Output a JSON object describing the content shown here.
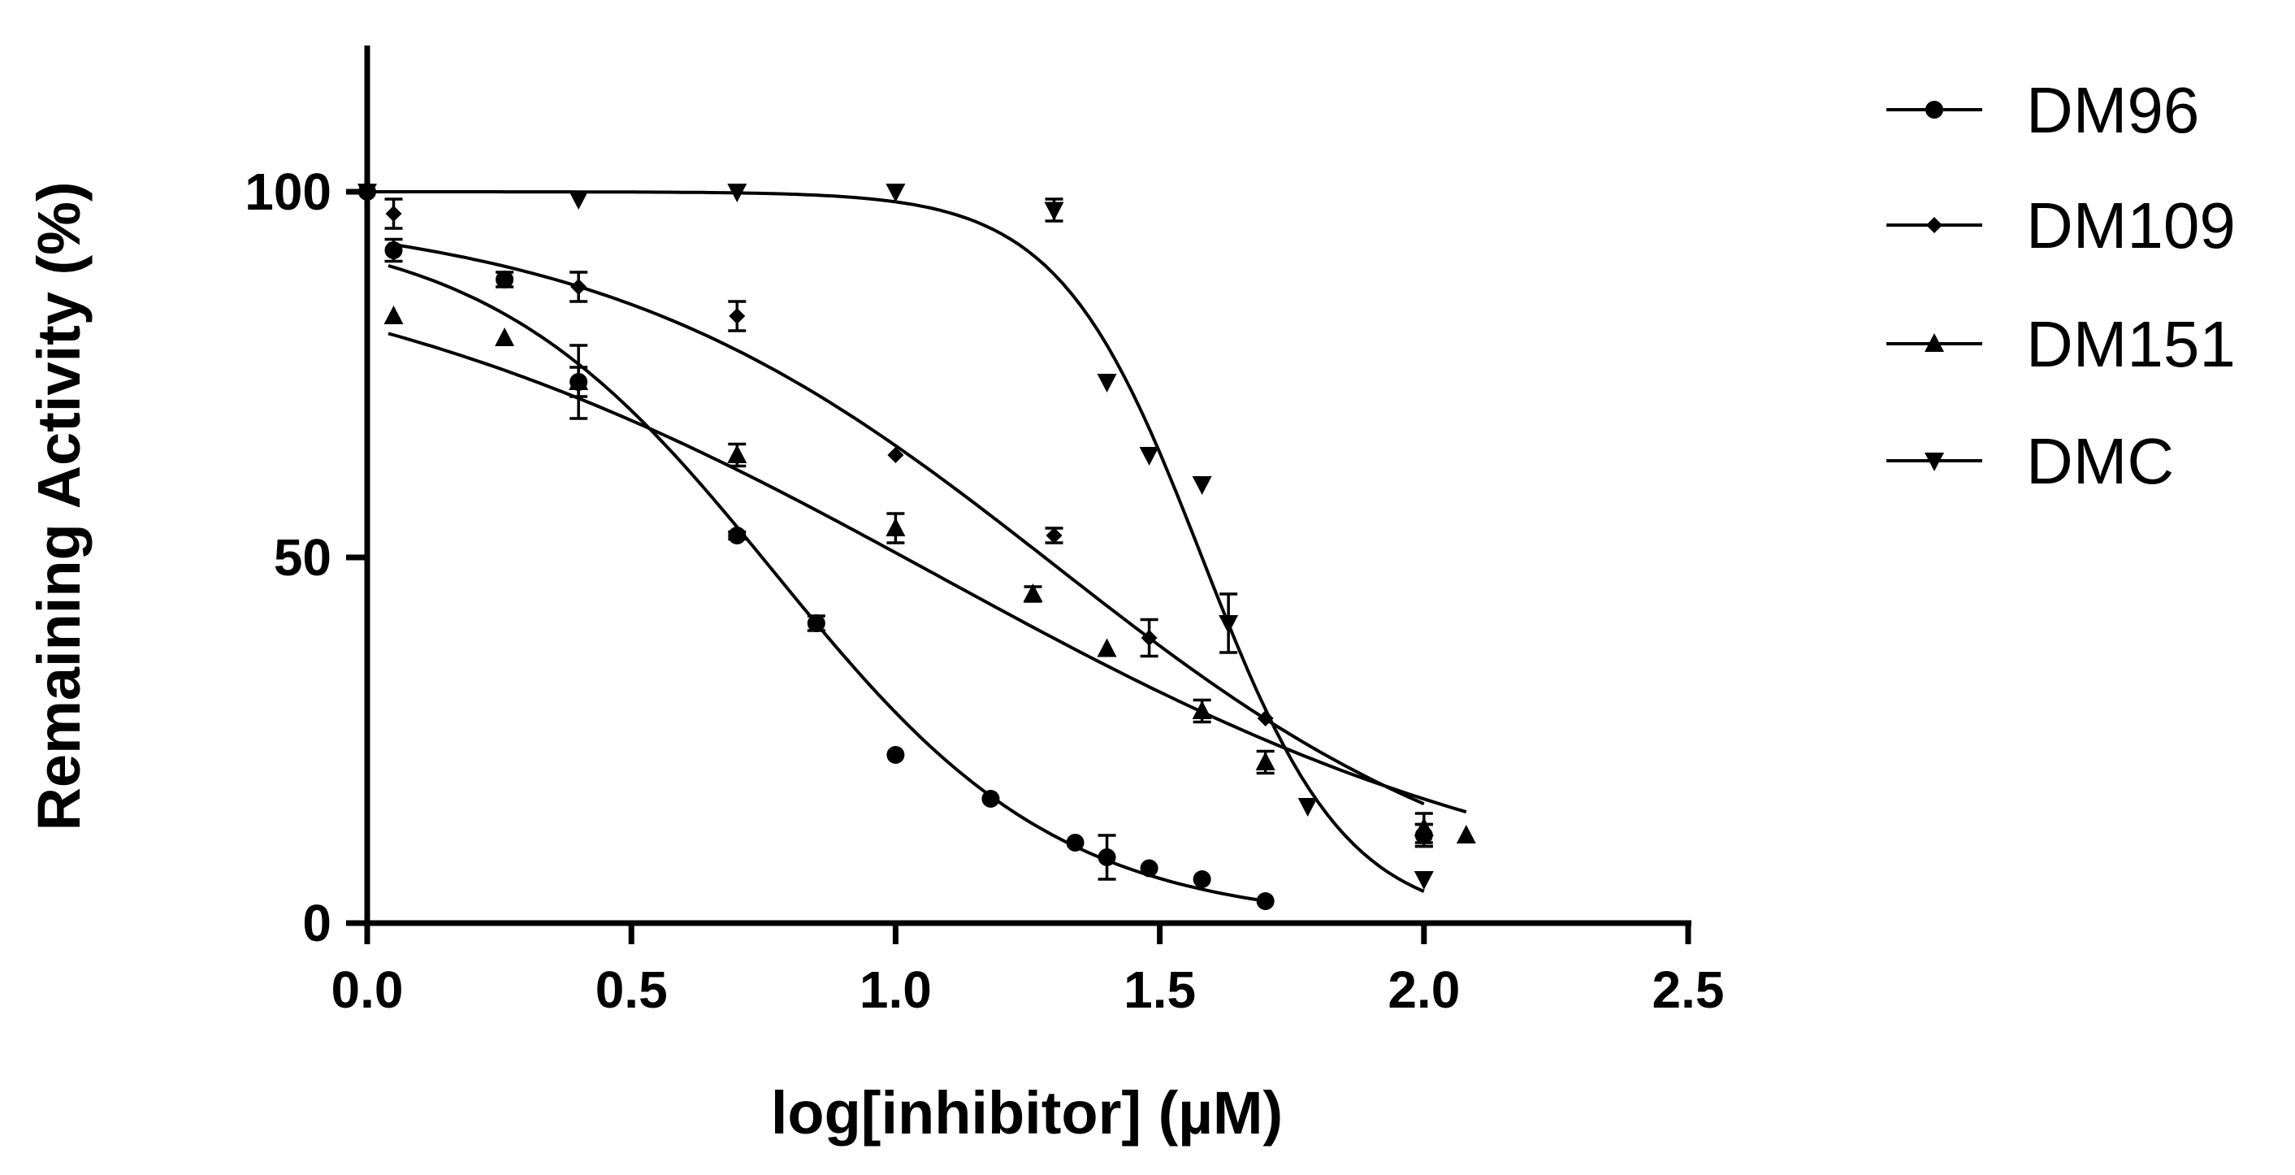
{
  "chart_data": {
    "type": "scatter",
    "title": "",
    "xlabel": "log[inhibitor] (µM)",
    "ylabel": "Remaining Activity (%)",
    "xlim": [
      0,
      2.5
    ],
    "ylim": [
      0,
      120
    ],
    "xticks": [
      "0.0",
      "0.5",
      "1.0",
      "1.5",
      "2.0",
      "2.5"
    ],
    "yticks": [
      "0",
      "50",
      "100"
    ],
    "legend_position": "right",
    "grid": false,
    "series": [
      {
        "name": "DM96",
        "marker": "circle",
        "points": [
          {
            "x": 0.0,
            "y": 100,
            "err": 0
          },
          {
            "x": 0.05,
            "y": 92,
            "err": 1.5
          },
          {
            "x": 0.26,
            "y": 88,
            "err": 1
          },
          {
            "x": 0.4,
            "y": 74,
            "err": 2
          },
          {
            "x": 0.7,
            "y": 53,
            "err": 0.5
          },
          {
            "x": 0.85,
            "y": 41,
            "err": 1
          },
          {
            "x": 1.0,
            "y": 23,
            "err": 0
          },
          {
            "x": 1.18,
            "y": 17,
            "err": 0
          },
          {
            "x": 1.34,
            "y": 11,
            "err": 0
          },
          {
            "x": 1.4,
            "y": 9,
            "err": 3
          },
          {
            "x": 1.48,
            "y": 7.5,
            "err": 0
          },
          {
            "x": 1.58,
            "y": 6,
            "err": 0
          },
          {
            "x": 1.7,
            "y": 3,
            "err": 0
          },
          {
            "x": 2.0,
            "y": 12,
            "err": 1.5
          }
        ],
        "fit": {
          "bottom": 0,
          "top": 96,
          "logic50": 0.77,
          "hill": -1.6,
          "xrange": [
            0.04,
            1.7
          ]
        }
      },
      {
        "name": "DM109",
        "marker": "diamond",
        "points": [
          {
            "x": 0.0,
            "y": 100,
            "err": 0
          },
          {
            "x": 0.05,
            "y": 97,
            "err": 2
          },
          {
            "x": 0.4,
            "y": 87,
            "err": 2
          },
          {
            "x": 0.7,
            "y": 83,
            "err": 2
          },
          {
            "x": 1.0,
            "y": 64,
            "err": 0
          },
          {
            "x": 1.3,
            "y": 53,
            "err": 1
          },
          {
            "x": 1.48,
            "y": 39,
            "err": 2.5
          },
          {
            "x": 1.7,
            "y": 28,
            "err": 0
          },
          {
            "x": 2.0,
            "y": 12,
            "err": 1.5
          }
        ],
        "fit": {
          "bottom": 0,
          "top": 98,
          "logic50": 1.3,
          "hill": -1.0,
          "xrange": [
            0.04,
            2.0
          ]
        }
      },
      {
        "name": "DM151",
        "marker": "triangle-up",
        "points": [
          {
            "x": 0.05,
            "y": 83,
            "err": 0
          },
          {
            "x": 0.26,
            "y": 80,
            "err": 0
          },
          {
            "x": 0.4,
            "y": 74,
            "err": 5
          },
          {
            "x": 0.7,
            "y": 64,
            "err": 1.5
          },
          {
            "x": 1.0,
            "y": 54,
            "err": 2
          },
          {
            "x": 1.26,
            "y": 45,
            "err": 1
          },
          {
            "x": 1.4,
            "y": 37.5,
            "err": 0
          },
          {
            "x": 1.58,
            "y": 29,
            "err": 1.5
          },
          {
            "x": 1.7,
            "y": 22,
            "err": 1.5
          },
          {
            "x": 2.0,
            "y": 13,
            "err": 2
          },
          {
            "x": 2.08,
            "y": 12,
            "err": 0
          }
        ],
        "fit": {
          "bottom": 0,
          "top": 95,
          "logic50": 1.08,
          "hill": -0.72,
          "xrange": [
            0.04,
            2.08
          ]
        }
      },
      {
        "name": "DMC",
        "marker": "triangle-down",
        "points": [
          {
            "x": 0.0,
            "y": 100,
            "err": 0
          },
          {
            "x": 0.4,
            "y": 99,
            "err": 0
          },
          {
            "x": 0.7,
            "y": 100,
            "err": 0
          },
          {
            "x": 1.0,
            "y": 100,
            "err": 0
          },
          {
            "x": 1.3,
            "y": 97.5,
            "err": 1.5
          },
          {
            "x": 1.4,
            "y": 74,
            "err": 0
          },
          {
            "x": 1.48,
            "y": 64,
            "err": 0
          },
          {
            "x": 1.58,
            "y": 60,
            "err": 0
          },
          {
            "x": 1.63,
            "y": 41,
            "err": 4
          },
          {
            "x": 1.78,
            "y": 16,
            "err": 0
          },
          {
            "x": 2.0,
            "y": 6,
            "err": 0
          }
        ],
        "fit": {
          "bottom": 0,
          "top": 100,
          "logic50": 1.58,
          "hill": -3.2,
          "xrange": [
            0.0,
            2.0
          ]
        }
      }
    ]
  }
}
